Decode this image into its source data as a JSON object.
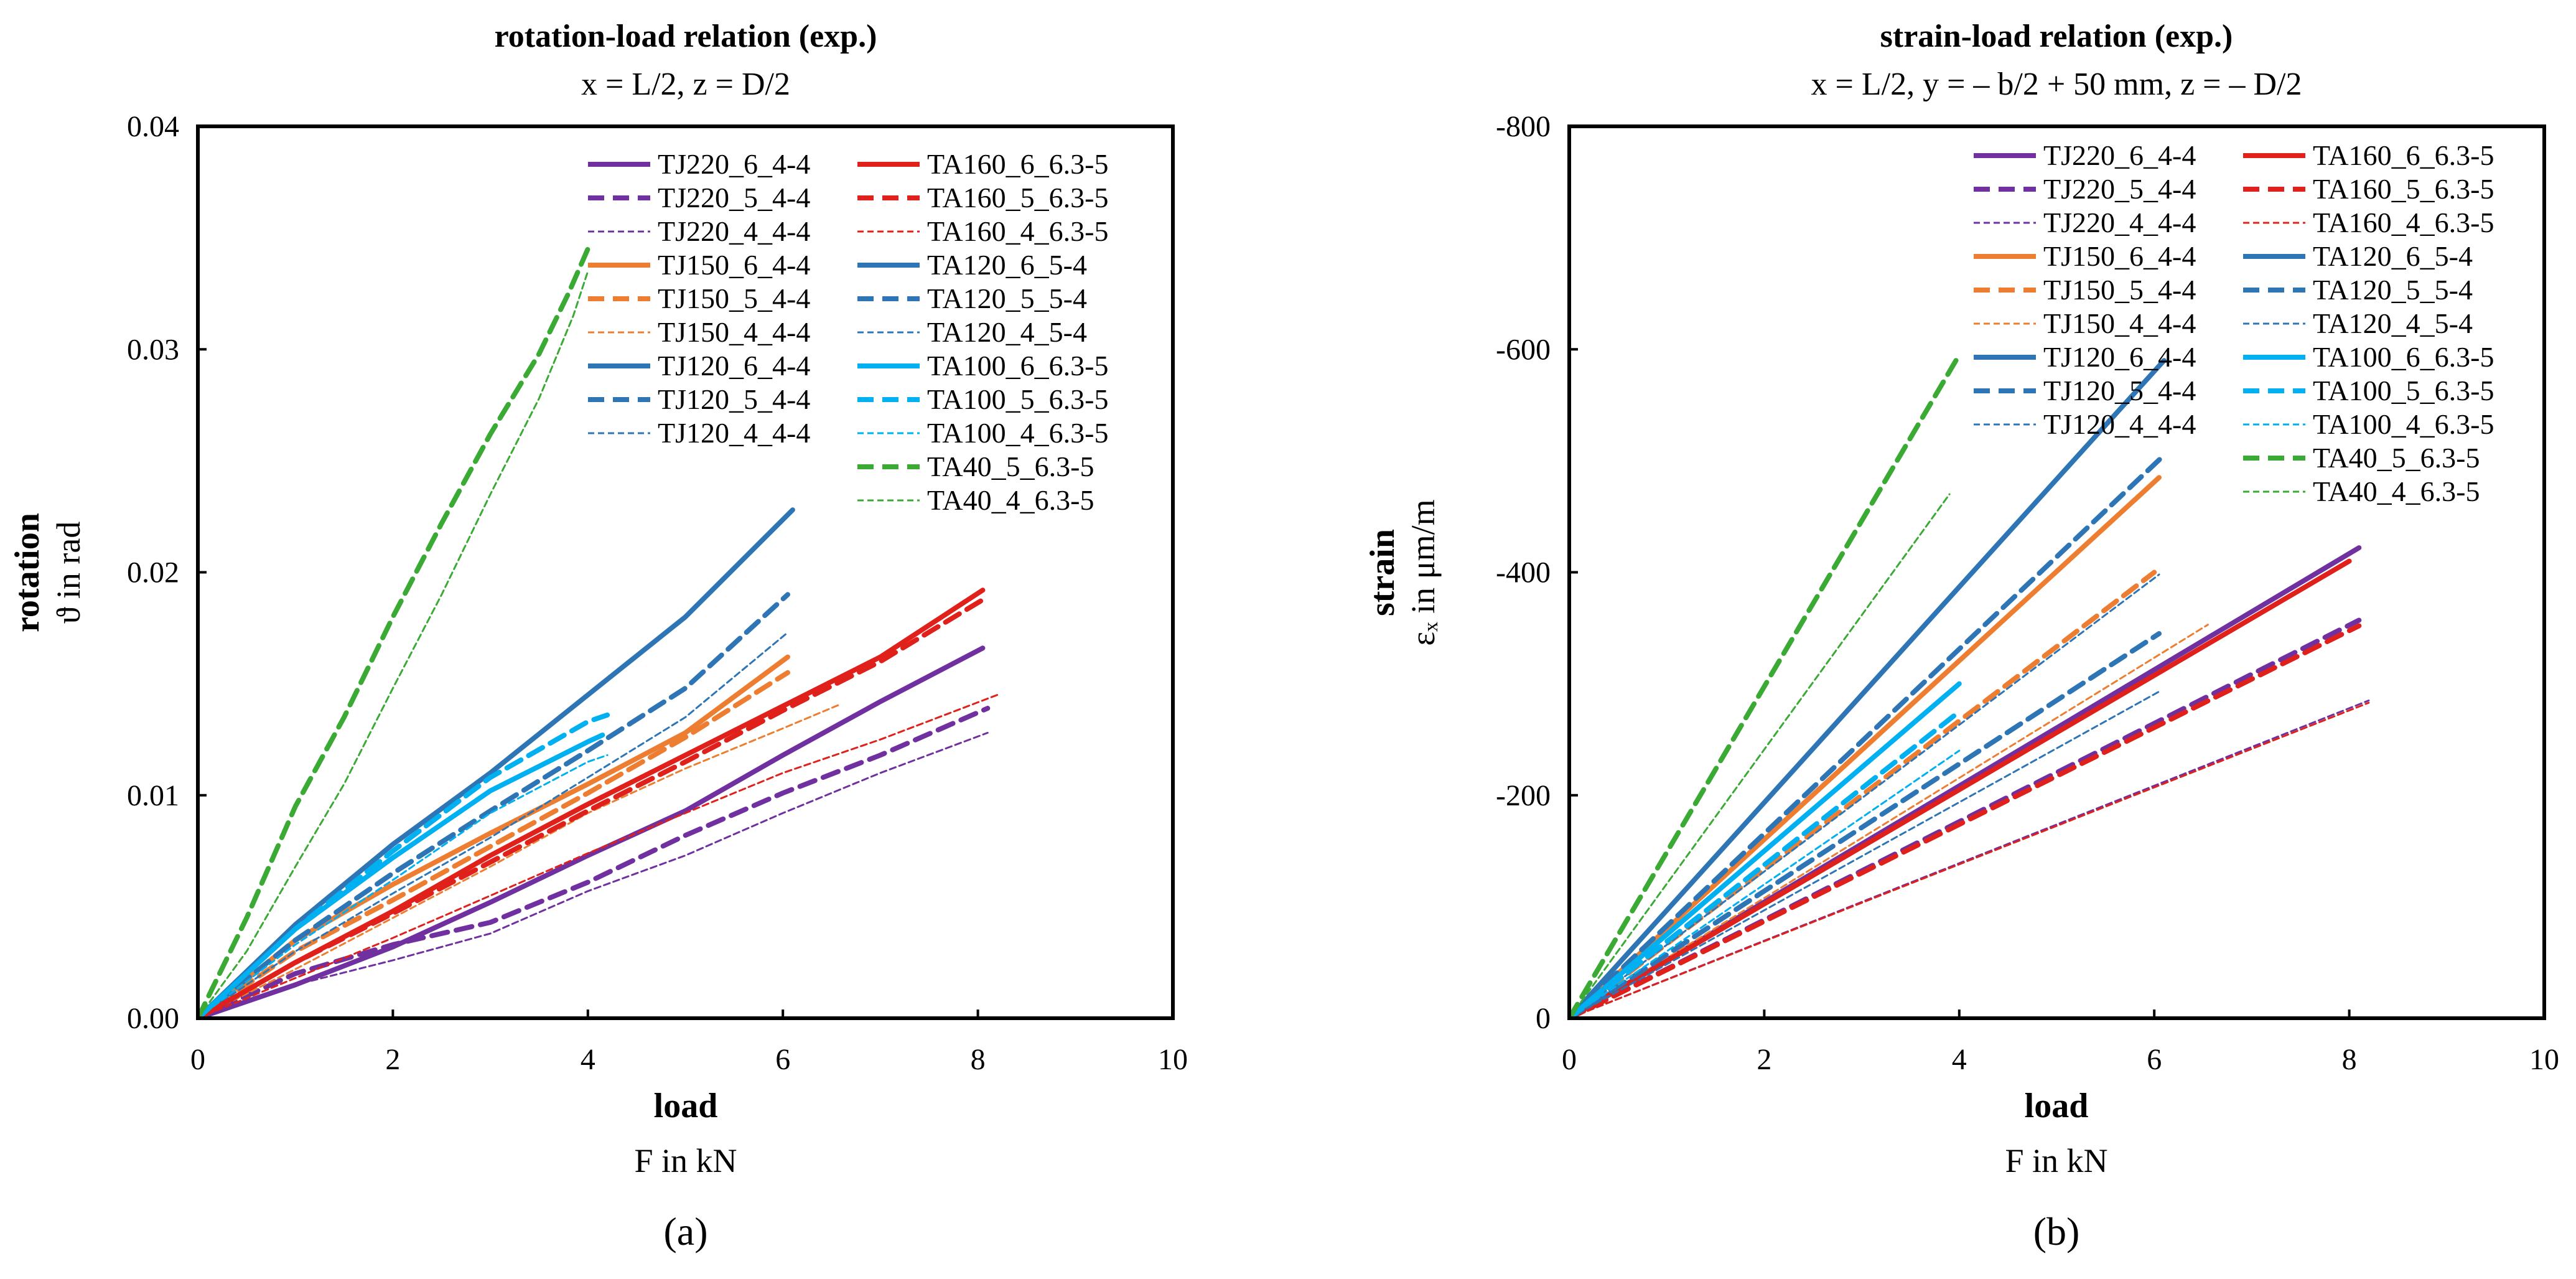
{
  "chart_data": [
    {
      "type": "line",
      "panel_label": "(a)",
      "title": "rotation-load relation (exp.)",
      "subtitle": "x = L/2, z = D/2",
      "xlabel": "load",
      "xunit_label": "F in kN",
      "ylabel": "rotation",
      "yunit_label": "ϑ in rad",
      "xlim": [
        0,
        10
      ],
      "ylim": [
        0,
        0.04
      ],
      "xticks": [
        "0",
        "2",
        "4",
        "6",
        "8",
        "10"
      ],
      "yticks": [
        "0.00",
        "0.01",
        "0.02",
        "0.03",
        "0.04"
      ],
      "y_inverted": false,
      "legend_columns": 2,
      "legend_position": "top-right",
      "series": [
        {
          "name": "TJ220_6_4-4",
          "color": "#7030a0",
          "style": "solid",
          "x": [
            0,
            1,
            2,
            3,
            4,
            5,
            6,
            7,
            8.05
          ],
          "y": [
            0,
            0.0015,
            0.0032,
            0.0052,
            0.0073,
            0.0093,
            0.0118,
            0.0142,
            0.0166
          ]
        },
        {
          "name": "TJ220_5_4-4",
          "color": "#7030a0",
          "style": "dashed",
          "x": [
            0,
            1,
            2,
            3,
            4,
            5,
            6,
            7,
            8.1
          ],
          "y": [
            0,
            0.002,
            0.0033,
            0.0043,
            0.0061,
            0.0082,
            0.0101,
            0.0118,
            0.0139
          ]
        },
        {
          "name": "TJ220_4_4-4",
          "color": "#7030a0",
          "style": "dotted",
          "x": [
            0,
            1,
            2,
            3,
            4,
            5,
            6,
            7,
            8.1
          ],
          "y": [
            0,
            0.0015,
            0.0026,
            0.0038,
            0.0057,
            0.0073,
            0.0092,
            0.011,
            0.0128
          ]
        },
        {
          "name": "TJ150_6_4-4",
          "color": "#ed7d31",
          "style": "solid",
          "x": [
            0,
            1,
            2,
            3,
            4,
            5,
            6.05
          ],
          "y": [
            0,
            0.0035,
            0.006,
            0.0083,
            0.0105,
            0.0128,
            0.0162
          ]
        },
        {
          "name": "TJ150_5_4-4",
          "color": "#ed7d31",
          "style": "dashed",
          "x": [
            0,
            1,
            2,
            3,
            4,
            5,
            6.05
          ],
          "y": [
            0,
            0.003,
            0.0053,
            0.0077,
            0.0101,
            0.0126,
            0.0155
          ]
        },
        {
          "name": "TJ150_4_4-4",
          "color": "#ed7d31",
          "style": "dotted",
          "x": [
            0,
            1,
            2,
            3,
            4,
            5,
            6,
            6.6
          ],
          "y": [
            0,
            0.0022,
            0.0045,
            0.0068,
            0.0092,
            0.0112,
            0.013,
            0.0141
          ]
        },
        {
          "name": "TJ120_6_4-4",
          "color": "#2e75b6",
          "style": "solid",
          "x": [
            0,
            1,
            2,
            3,
            4,
            5,
            6.1
          ],
          "y": [
            0,
            0.0042,
            0.0078,
            0.011,
            0.0145,
            0.018,
            0.0228
          ]
        },
        {
          "name": "TJ120_5_4-4",
          "color": "#2e75b6",
          "style": "dashed",
          "x": [
            0,
            1,
            2,
            3,
            4,
            5,
            6.05
          ],
          "y": [
            0,
            0.0035,
            0.0065,
            0.0093,
            0.012,
            0.0148,
            0.019
          ]
        },
        {
          "name": "TJ120_4_4-4",
          "color": "#2e75b6",
          "style": "dotted",
          "x": [
            0,
            1,
            2,
            3,
            4,
            5,
            6.05
          ],
          "y": [
            0,
            0.003,
            0.0056,
            0.0081,
            0.0108,
            0.0135,
            0.0173
          ]
        },
        {
          "name": "TA160_6_6.3-5",
          "color": "#e0201b",
          "style": "solid",
          "x": [
            0,
            1,
            2,
            3,
            4,
            5,
            6,
            7,
            8.05
          ],
          "y": [
            0,
            0.0025,
            0.0048,
            0.0073,
            0.0096,
            0.0118,
            0.014,
            0.0162,
            0.0192
          ]
        },
        {
          "name": "TA160_5_6.3-5",
          "color": "#e0201b",
          "style": "dashed",
          "x": [
            0,
            1,
            2,
            3,
            4,
            5,
            6,
            7,
            8.1
          ],
          "y": [
            0,
            0.0025,
            0.0047,
            0.007,
            0.0093,
            0.0115,
            0.0138,
            0.016,
            0.0189
          ]
        },
        {
          "name": "TA160_4_6.3-5",
          "color": "#e0201b",
          "style": "dotted",
          "x": [
            0,
            1,
            2,
            3,
            4,
            5,
            6,
            7,
            8.2
          ],
          "y": [
            0,
            0.0018,
            0.0036,
            0.0055,
            0.0074,
            0.0092,
            0.011,
            0.0125,
            0.0145
          ]
        },
        {
          "name": "TA120_6_5-4",
          "color": "#2e75b6",
          "style": "solid",
          "x": [],
          "y": []
        },
        {
          "name": "TA120_5_5-4",
          "color": "#2e75b6",
          "style": "dashed",
          "x": [],
          "y": []
        },
        {
          "name": "TA120_4_5-4",
          "color": "#2e75b6",
          "style": "dotted",
          "x": [],
          "y": []
        },
        {
          "name": "TA100_6_6.3-5",
          "color": "#00b0f0",
          "style": "solid",
          "x": [
            0,
            1,
            2,
            3,
            4,
            4.15
          ],
          "y": [
            0,
            0.004,
            0.0072,
            0.0102,
            0.0124,
            0.0127
          ]
        },
        {
          "name": "TA100_5_6.3-5",
          "color": "#00b0f0",
          "style": "dashed",
          "x": [
            0,
            1,
            2,
            3,
            4,
            4.2
          ],
          "y": [
            0,
            0.004,
            0.0075,
            0.0108,
            0.0133,
            0.0136
          ]
        },
        {
          "name": "TA100_4_6.3-5",
          "color": "#00b0f0",
          "style": "dotted",
          "x": [
            0,
            1,
            2,
            3,
            4,
            4.2
          ],
          "y": [
            0,
            0.0033,
            0.0062,
            0.0092,
            0.0115,
            0.0118
          ]
        },
        {
          "name": "TA40_5_6.3-5",
          "color": "#3aaa35",
          "style": "dashed",
          "x": [
            0,
            0.5,
            1,
            1.5,
            2,
            2.5,
            3,
            3.5,
            3.8,
            4.0
          ],
          "y": [
            0,
            0.0045,
            0.0095,
            0.0135,
            0.018,
            0.0222,
            0.0262,
            0.0298,
            0.0325,
            0.0345
          ]
        },
        {
          "name": "TA40_4_6.3-5",
          "color": "#3aaa35",
          "style": "dotted",
          "x": [
            0,
            0.5,
            1,
            1.5,
            2,
            2.5,
            3,
            3.5,
            3.85,
            4.0
          ],
          "y": [
            0,
            0.003,
            0.0068,
            0.0105,
            0.0148,
            0.019,
            0.0235,
            0.0278,
            0.0315,
            0.0335
          ]
        }
      ]
    },
    {
      "type": "line",
      "panel_label": "(b)",
      "title": "strain-load relation (exp.)",
      "subtitle": "x = L/2, y = – b/2 + 50 mm, z = – D/2",
      "xlabel": "load",
      "xunit_label": "F in kN",
      "ylabel": "strain",
      "yunit_label": "εₓ in μm/m",
      "xlim": [
        0,
        10
      ],
      "ylim": [
        0,
        -800
      ],
      "xticks": [
        "0",
        "2",
        "4",
        "6",
        "8",
        "10"
      ],
      "yticks": [
        "0",
        "-200",
        "-400",
        "-600",
        "-800"
      ],
      "y_inverted": true,
      "legend_columns": 2,
      "legend_position": "top-right",
      "series": [
        {
          "name": "TJ220_6_4-4",
          "color": "#7030a0",
          "style": "solid",
          "x": [
            0,
            8.1
          ],
          "y": [
            0,
            -422
          ]
        },
        {
          "name": "TJ220_5_4-4",
          "color": "#7030a0",
          "style": "dashed",
          "x": [
            0,
            8.1
          ],
          "y": [
            0,
            -357
          ]
        },
        {
          "name": "TJ220_4_4-4",
          "color": "#7030a0",
          "style": "dotted",
          "x": [
            0,
            8.2
          ],
          "y": [
            0,
            -285
          ]
        },
        {
          "name": "TJ150_6_4-4",
          "color": "#ed7d31",
          "style": "solid",
          "x": [
            0,
            6.05
          ],
          "y": [
            0,
            -485
          ]
        },
        {
          "name": "TJ150_5_4-4",
          "color": "#ed7d31",
          "style": "dashed",
          "x": [
            0,
            6.0
          ],
          "y": [
            0,
            -400
          ]
        },
        {
          "name": "TJ150_4_4-4",
          "color": "#ed7d31",
          "style": "dotted",
          "x": [
            0,
            6.55
          ],
          "y": [
            0,
            -353
          ]
        },
        {
          "name": "TJ120_6_4-4",
          "color": "#2e75b6",
          "style": "solid",
          "x": [
            0,
            6.1
          ],
          "y": [
            0,
            -590
          ]
        },
        {
          "name": "TJ120_5_4-4",
          "color": "#2e75b6",
          "style": "dashed",
          "x": [
            0,
            6.1
          ],
          "y": [
            0,
            -505
          ]
        },
        {
          "name": "TJ120_4_4-4",
          "color": "#2e75b6",
          "style": "dotted",
          "x": [
            0,
            6.05
          ],
          "y": [
            0,
            -398
          ]
        },
        {
          "name": "TA160_6_6.3-5",
          "color": "#e0201b",
          "style": "solid",
          "x": [
            0,
            8.0
          ],
          "y": [
            0,
            -410
          ]
        },
        {
          "name": "TA160_5_6.3-5",
          "color": "#e0201b",
          "style": "dashed",
          "x": [
            0,
            8.1
          ],
          "y": [
            0,
            -352
          ]
        },
        {
          "name": "TA160_4_6.3-5",
          "color": "#e0201b",
          "style": "dotted",
          "x": [
            0,
            8.2
          ],
          "y": [
            0,
            -283
          ]
        },
        {
          "name": "TA120_6_5-4",
          "color": "#2e75b6",
          "style": "solid",
          "x": [],
          "y": []
        },
        {
          "name": "TA120_5_5-4",
          "color": "#2e75b6",
          "style": "dashed",
          "x": [
            0,
            6.05
          ],
          "y": [
            0,
            -345
          ]
        },
        {
          "name": "TA120_4_5-4",
          "color": "#2e75b6",
          "style": "dotted",
          "x": [
            0,
            6.05
          ],
          "y": [
            0,
            -293
          ]
        },
        {
          "name": "TA100_6_6.3-5",
          "color": "#00b0f0",
          "style": "solid",
          "x": [
            0,
            4.0
          ],
          "y": [
            0,
            -300
          ]
        },
        {
          "name": "TA100_5_6.3-5",
          "color": "#00b0f0",
          "style": "dashed",
          "x": [
            0,
            4.0
          ],
          "y": [
            0,
            -275
          ]
        },
        {
          "name": "TA100_4_6.3-5",
          "color": "#00b0f0",
          "style": "dotted",
          "x": [
            0,
            4.0
          ],
          "y": [
            0,
            -240
          ]
        },
        {
          "name": "TA40_5_6.3-5",
          "color": "#3aaa35",
          "style": "dashed",
          "x": [
            0,
            4.0
          ],
          "y": [
            0,
            -595
          ]
        },
        {
          "name": "TA40_4_6.3-5",
          "color": "#3aaa35",
          "style": "dotted",
          "x": [
            0,
            3.9
          ],
          "y": [
            0,
            -470
          ]
        }
      ]
    }
  ]
}
